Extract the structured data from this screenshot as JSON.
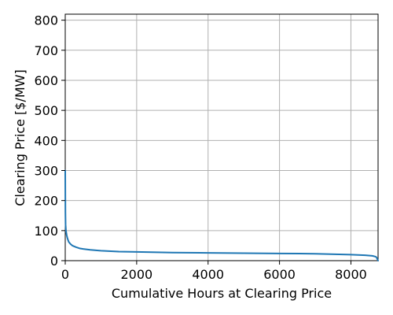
{
  "chart_data": {
    "type": "line",
    "title": "",
    "xlabel": "Cumulative Hours at Clearing Price",
    "ylabel": "Clearing Price [$/MW]",
    "xlim": [
      0,
      8760
    ],
    "ylim": [
      0,
      820
    ],
    "x_ticks": [
      0,
      2000,
      4000,
      6000,
      8000
    ],
    "x_tick_labels": [
      "0",
      "2000",
      "4000",
      "6000",
      "8000"
    ],
    "y_ticks": [
      0,
      100,
      200,
      300,
      400,
      500,
      600,
      700,
      800
    ],
    "y_tick_labels": [
      "0",
      "100",
      "200",
      "300",
      "400",
      "500",
      "600",
      "700",
      "800"
    ],
    "grid": true,
    "legend": "none",
    "colors": {
      "line": "#1f77b4",
      "grid": "#b0b0b0",
      "axis": "#000000"
    },
    "series": [
      {
        "x": [
          0,
          5,
          10,
          20,
          40,
          60,
          80,
          100,
          150,
          200,
          300,
          400,
          500,
          700,
          1000,
          1500,
          2000,
          3000,
          4000,
          5000,
          6000,
          7000,
          8000,
          8400,
          8600,
          8700,
          8730,
          8760
        ],
        "values": [
          300,
          160,
          120,
          100,
          85,
          75,
          68,
          62,
          55,
          50,
          45,
          41,
          39,
          36,
          33,
          30,
          29,
          27,
          26,
          25,
          24,
          23,
          20,
          18,
          16,
          13,
          8,
          0
        ]
      }
    ]
  }
}
